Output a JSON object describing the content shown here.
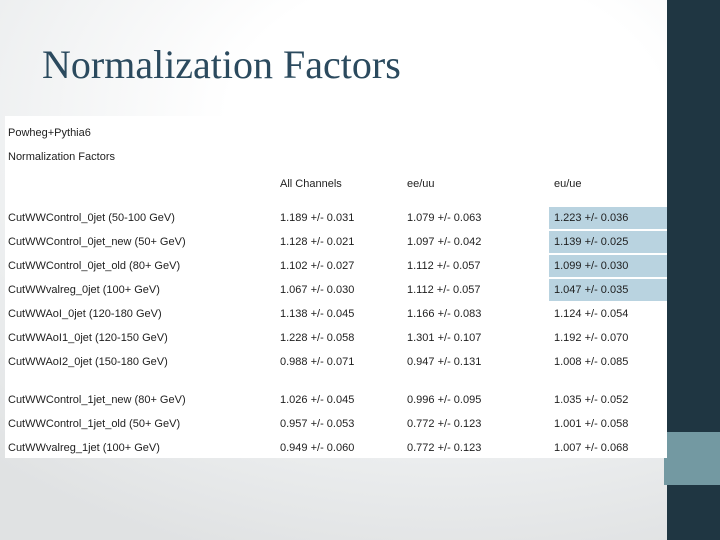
{
  "slide": {
    "title": "Normalization Factors"
  },
  "colors": {
    "sidebar_dark": "#1f3642",
    "sidebar_accent_teal": "#7399a2",
    "highlight_blue": "#b9d3e0",
    "title_text": "#2b4a5e"
  },
  "table": {
    "source_label": "Powheg+Pythia6",
    "subtitle": "Normalization Factors",
    "headers": {
      "label": "",
      "all": "All Channels",
      "eeuu": "ee/uu",
      "euue": "eu/ue"
    },
    "rows": [
      {
        "label": "CutWWControl_0jet (50-100 GeV)",
        "all": "1.189 +/- 0.031",
        "eeuu": "1.079 +/- 0.063",
        "euue": "1.223 +/- 0.036",
        "highlighted": true
      },
      {
        "label": "CutWWControl_0jet_new (50+ GeV)",
        "all": "1.128 +/- 0.021",
        "eeuu": "1.097 +/- 0.042",
        "euue": "1.139 +/- 0.025",
        "highlighted": true
      },
      {
        "label": "CutWWControl_0jet_old (80+ GeV)",
        "all": "1.102 +/- 0.027",
        "eeuu": "1.112 +/- 0.057",
        "euue": "1.099 +/- 0.030",
        "highlighted": true
      },
      {
        "label": "CutWWvalreg_0jet (100+ GeV)",
        "all": "1.067 +/- 0.030",
        "eeuu": "1.112 +/- 0.057",
        "euue": "1.047 +/- 0.035",
        "highlighted": true
      },
      {
        "label": "CutWWAoI_0jet (120-180 GeV)",
        "all": "1.138 +/- 0.045",
        "eeuu": "1.166 +/- 0.083",
        "euue": "1.124 +/- 0.054",
        "highlighted": false
      },
      {
        "label": "CutWWAoI1_0jet (120-150 GeV)",
        "all": "1.228 +/- 0.058",
        "eeuu": "1.301 +/- 0.107",
        "euue": "1.192 +/- 0.070",
        "highlighted": false
      },
      {
        "label": "CutWWAoI2_0jet (150-180 GeV)",
        "all": "0.988 +/- 0.071",
        "eeuu": "0.947 +/- 0.131",
        "euue": "1.008 +/- 0.085",
        "highlighted": false
      },
      {
        "label": "CutWWControl_1jet_new (80+ GeV)",
        "all": "1.026 +/- 0.045",
        "eeuu": "0.996 +/- 0.095",
        "euue": "1.035 +/- 0.052",
        "highlighted": false
      },
      {
        "label": "CutWWControl_1jet_old (50+ GeV)",
        "all": "0.957 +/- 0.053",
        "eeuu": "0.772 +/- 0.123",
        "euue": "1.001 +/- 0.058",
        "highlighted": false
      },
      {
        "label": "CutWWvalreg_1jet (100+ GeV)",
        "all": "0.949 +/- 0.060",
        "eeuu": "0.772 +/- 0.123",
        "euue": "1.007 +/- 0.068",
        "highlighted": false
      }
    ]
  }
}
